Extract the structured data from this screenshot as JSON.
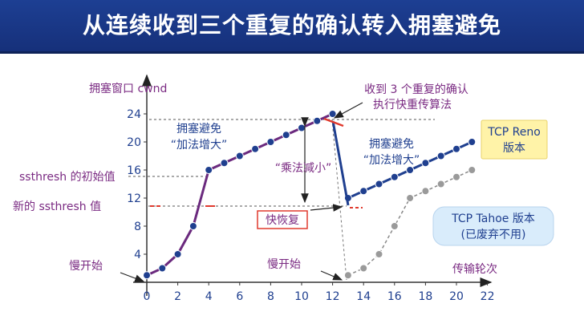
{
  "slide": {
    "title": "从连续收到三个重复的确认转入拥塞避免"
  },
  "chart_data": {
    "type": "line",
    "ylabel": "拥塞窗口 cwnd",
    "xlabel": "传输轮次",
    "xticks": [
      0,
      2,
      4,
      6,
      8,
      10,
      12,
      14,
      16,
      18,
      20,
      22
    ],
    "yticks": [
      4,
      8,
      12,
      16,
      20,
      24
    ],
    "xlim": [
      0,
      22
    ],
    "ylim": [
      0,
      24
    ],
    "series": [
      {
        "name": "TCP Reno 版本",
        "color": "#6b2a7e",
        "x": [
          0,
          1,
          2,
          3,
          4,
          5,
          6,
          7,
          8,
          9,
          10,
          11,
          12
        ],
        "y": [
          1,
          2,
          4,
          8,
          16,
          17,
          18,
          19,
          20,
          21,
          22,
          23,
          24
        ]
      },
      {
        "name": "TCP Reno 版本",
        "color": "#1f3f8f",
        "x": [
          13,
          14,
          15,
          16,
          17,
          18,
          19,
          20,
          21
        ],
        "y": [
          12,
          13,
          14,
          15,
          16,
          17,
          18,
          19,
          20
        ]
      },
      {
        "name": "TCP Tahoe 版本 (已废弃不用)",
        "color": "#888888",
        "x": [
          13,
          14,
          15,
          16,
          17,
          18,
          19,
          20,
          21
        ],
        "y": [
          1,
          2,
          4,
          8,
          12,
          13,
          14,
          15,
          16
        ]
      }
    ],
    "annotations": {
      "ssthresh_initial": "ssthresh 的初始值",
      "ssthresh_new": "新的 ssthresh 值",
      "slow_start_1": "慢开始",
      "slow_start_2": "慢开始",
      "ca_1_line1": "拥塞避免",
      "ca_1_line2": "“加法增大”",
      "ca_2_line1": "拥塞避免",
      "ca_2_line2": "“加法增大”",
      "mult_decrease": "“乘法减小”",
      "three_dup_line1": "收到 3 个重复的确认",
      "three_dup_line2": "执行快重传算法",
      "fast_recovery": "快恢复",
      "reno_line1": "TCP Reno",
      "reno_line2": "版本",
      "tahoe_line1": "TCP Tahoe 版本",
      "tahoe_line2": "(已废弃不用)"
    }
  }
}
